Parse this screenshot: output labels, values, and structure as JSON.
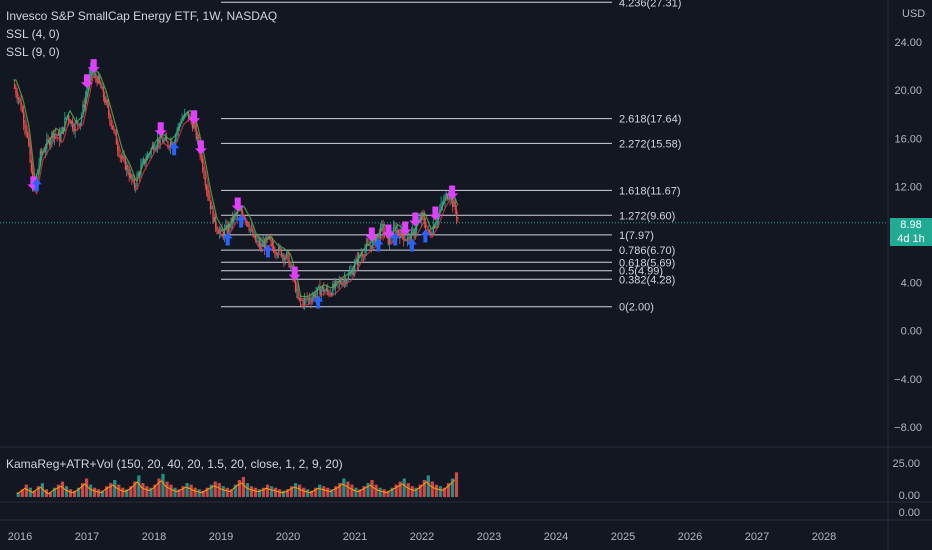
{
  "legend": {
    "title": "Invesco S&P SmallCap Energy ETF, 1W, NASDAQ",
    "ind1": "SSL (4, 0)",
    "ind2": "SSL (9, 0)",
    "ind3": "KamaReg+ATR+Vol (150, 20, 40, 20, 1.5, 20, close, 1, 2, 9, 20)"
  },
  "price_axis": {
    "currency": "USD",
    "labels": [
      "24.00",
      "20.00",
      "16.00",
      "12.00",
      "8.00",
      "4.00",
      "0.00",
      "−4.00",
      "−8.00"
    ]
  },
  "lower_axis": {
    "labels": [
      "25.00",
      "0.00",
      "0.00"
    ]
  },
  "last_price": {
    "value": "8.98",
    "countdown": "4d 1h"
  },
  "colors": {
    "background": "#131722",
    "up": "#26a69a",
    "down": "#ef5350",
    "badge": "#22ab94",
    "signal_down": "#e040fb",
    "signal_up": "#2962ff"
  },
  "chart_data": {
    "type": "line",
    "title": "Invesco S&P SmallCap Energy ETF, 1W, NASDAQ",
    "y_scale": "linear",
    "ylim": [
      -9.5,
      27.5
    ],
    "x_ticks": [
      "2016",
      "2017",
      "2018",
      "2019",
      "2020",
      "2021",
      "2022",
      "2023",
      "2024",
      "2025",
      "2026",
      "2027",
      "2028"
    ],
    "series": [
      {
        "x": [
          2015.9,
          2016.0,
          2016.1,
          2016.2,
          2016.3,
          2016.4,
          2016.5,
          2016.6,
          2016.7,
          2016.8,
          2016.9,
          2017.0,
          2017.05,
          2017.15,
          2017.25,
          2017.4,
          2017.5,
          2017.6,
          2017.7,
          2017.8,
          2017.9,
          2018.0,
          2018.1,
          2018.2,
          2018.3,
          2018.4,
          2018.5,
          2018.6,
          2018.7,
          2018.8,
          2018.9,
          2019.0,
          2019.1,
          2019.2,
          2019.3,
          2019.4,
          2019.5,
          2019.6,
          2019.7,
          2019.8,
          2019.9,
          2020.0,
          2020.1,
          2020.15,
          2020.25,
          2020.35,
          2020.5,
          2020.6,
          2020.7,
          2020.8,
          2020.9,
          2021.0,
          2021.1,
          2021.2,
          2021.3,
          2021.4,
          2021.5,
          2021.6,
          2021.7,
          2021.8,
          2021.9,
          2022.0,
          2022.1,
          2022.2,
          2022.3,
          2022.4,
          2022.5,
          2022.55
        ],
        "values": [
          20.5,
          19.0,
          16.5,
          11.5,
          14.5,
          15.5,
          16.5,
          16.0,
          18.0,
          17.0,
          17.5,
          20.0,
          21.5,
          21.0,
          19.5,
          16.5,
          14.5,
          13.5,
          12.0,
          13.5,
          14.5,
          15.5,
          16.0,
          15.5,
          16.0,
          17.5,
          18.0,
          17.0,
          14.5,
          11.5,
          9.0,
          8.0,
          8.5,
          9.5,
          10.0,
          9.0,
          7.5,
          7.0,
          7.5,
          6.8,
          6.5,
          6.0,
          4.0,
          2.5,
          2.5,
          2.8,
          3.5,
          3.2,
          3.6,
          4.2,
          4.5,
          5.5,
          6.5,
          7.0,
          7.5,
          8.5,
          7.5,
          8.5,
          8.0,
          7.5,
          8.5,
          9.5,
          8.0,
          9.0,
          10.5,
          11.5,
          10.0,
          8.98
        ]
      }
    ],
    "fib_levels": [
      {
        "label": "4.236(27.31)",
        "value": 27.31
      },
      {
        "label": "2.618(17.64)",
        "value": 17.64
      },
      {
        "label": "2.272(15.58)",
        "value": 15.58
      },
      {
        "label": "1.618(11.67)",
        "value": 11.67
      },
      {
        "label": "1.272(9.60)",
        "value": 9.6
      },
      {
        "label": "1(7.97)",
        "value": 7.97
      },
      {
        "label": "0.786(6.70)",
        "value": 6.7
      },
      {
        "label": "0.618(5.69)",
        "value": 5.69
      },
      {
        "label": "0.5(4.99)",
        "value": 4.99
      },
      {
        "label": "0.382(4.28)",
        "value": 4.28
      },
      {
        "label": "0(2.00)",
        "value": 2.0
      }
    ],
    "fib_x_start": 2019.0,
    "sell_signals": [
      2016.2,
      2017.0,
      2017.1,
      2018.1,
      2018.6,
      2018.7,
      2019.25,
      2020.1,
      2021.25,
      2021.5,
      2021.75,
      2021.9,
      2022.2,
      2022.45
    ],
    "buy_signals": [
      2016.25,
      2018.3,
      2019.1,
      2019.3,
      2019.7,
      2020.45,
      2021.35,
      2021.6,
      2021.85,
      2022.05
    ],
    "volume": {
      "x_start": 2015.95,
      "x_end": 2022.55,
      "values": [
        3,
        5,
        8,
        6,
        4,
        7,
        9,
        5,
        3,
        6,
        8,
        10,
        7,
        5,
        4,
        6,
        9,
        12,
        8,
        6,
        5,
        4,
        7,
        9,
        11,
        8,
        6,
        5,
        7,
        10,
        14,
        9,
        7,
        6,
        8,
        12,
        15,
        10,
        8,
        6,
        5,
        7,
        9,
        8,
        6,
        5,
        4,
        6,
        8,
        10,
        9,
        7,
        6,
        5,
        8,
        11,
        13,
        9,
        7,
        6,
        5,
        6,
        8,
        7,
        6,
        5,
        4,
        5,
        7,
        9,
        8,
        6,
        5,
        4,
        6,
        8,
        7,
        6,
        5,
        7,
        9,
        12,
        10,
        8,
        6,
        5,
        7,
        9,
        11,
        8,
        6,
        5,
        4,
        6,
        8,
        10,
        12,
        9,
        7,
        6,
        8,
        11,
        14,
        10,
        8,
        7,
        6,
        9,
        12,
        16
      ],
      "ylim": [
        0,
        28
      ]
    }
  }
}
